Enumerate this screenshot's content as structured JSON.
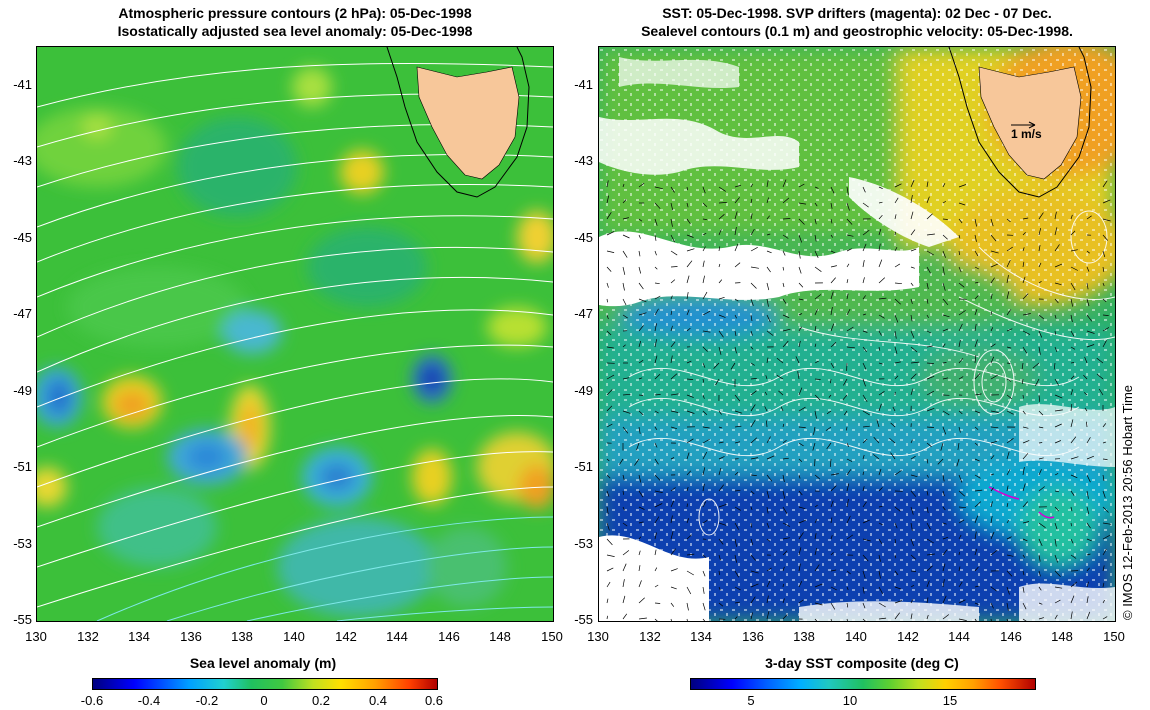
{
  "left_panel": {
    "title_line1": "Atmospheric pressure contours (2 hPa): 05-Dec-1998",
    "title_line2": "Isostatically adjusted sea level anomaly: 05-Dec-1998",
    "colorbar_label": "Sea level anomaly (m)",
    "colorbar_ticks": [
      "-0.6",
      "-0.4",
      "-0.2",
      "0",
      "0.2",
      "0.4",
      "0.6"
    ]
  },
  "right_panel": {
    "title_line1": "SST: 05-Dec-1998. SVP drifters (magenta): 02 Dec - 07 Dec.",
    "title_line2": "Sealevel contours (0.1 m) and geostrophic velocity: 05-Dec-1998.",
    "colorbar_label": "3-day SST composite (deg C)",
    "colorbar_ticks": [
      "5",
      "10",
      "15"
    ],
    "velocity_scale_label": "1 m/s"
  },
  "axes": {
    "lat_ticks": [
      "-41",
      "-43",
      "-45",
      "-47",
      "-49",
      "-51",
      "-53",
      "-55"
    ],
    "lon_ticks": [
      "130",
      "132",
      "134",
      "136",
      "138",
      "140",
      "142",
      "144",
      "146",
      "148",
      "150"
    ]
  },
  "credit": "© IMOS 12-Feb-2013 20:56 Hobart Time",
  "colors": {
    "land": "#f7c79a",
    "coastline": "#000000",
    "pressure_contour": "#ffffff",
    "cyan_contour": "#7fe8e8",
    "drifter": "#d400d4"
  },
  "map_data": {
    "lon_range": [
      130,
      150
    ],
    "lat_range": [
      -55,
      -40
    ],
    "sla_field_bins": [
      -0.6,
      -0.4,
      -0.2,
      0,
      0.2,
      0.4,
      0.6
    ],
    "sst_range_degC": [
      2,
      18
    ]
  }
}
